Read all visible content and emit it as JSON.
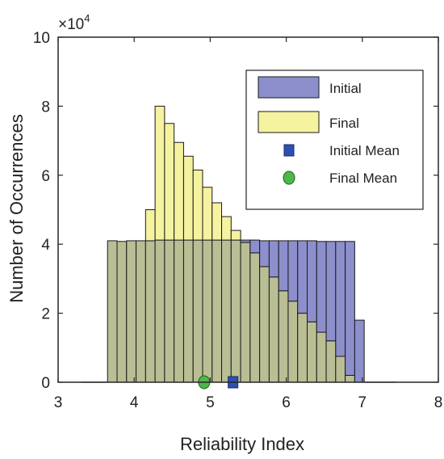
{
  "chart_data": {
    "type": "bar",
    "xlabel": "Reliability Index",
    "ylabel": "Number of Occurrences",
    "y_multiplier_base": "×10",
    "y_multiplier_exponent": "4",
    "xlim": [
      3,
      8
    ],
    "ylim": [
      0,
      10
    ],
    "xticks": [
      "3",
      "4",
      "5",
      "6",
      "7",
      "8"
    ],
    "yticks": [
      "0",
      "2",
      "4",
      "6",
      "8",
      "10"
    ],
    "bin_width": 0.125,
    "bin_left_edges": [
      3.65,
      3.775,
      3.9,
      4.025,
      4.15,
      4.275,
      4.4,
      4.525,
      4.65,
      4.775,
      4.9,
      5.025,
      5.15,
      5.275,
      5.4,
      5.525,
      5.65,
      5.775,
      5.9,
      6.025,
      6.15,
      6.275,
      6.4,
      6.525,
      6.65,
      6.775,
      6.9
    ],
    "series": [
      {
        "name": "Initial",
        "color": "#8c8fcc",
        "values": [
          4.1,
          4.08,
          4.1,
          4.1,
          4.1,
          4.12,
          4.12,
          4.12,
          4.12,
          4.12,
          4.12,
          4.12,
          4.12,
          4.12,
          4.12,
          4.12,
          4.1,
          4.1,
          4.1,
          4.1,
          4.1,
          4.1,
          4.08,
          4.08,
          4.08,
          4.08,
          1.8
        ]
      },
      {
        "name": "Final",
        "color": "#f5f2a0",
        "values": [
          4.1,
          4.08,
          4.1,
          4.1,
          5.0,
          8.0,
          7.5,
          6.95,
          6.55,
          6.15,
          5.65,
          5.2,
          4.8,
          4.4,
          4.05,
          3.75,
          3.35,
          3.05,
          2.65,
          2.35,
          2.0,
          1.75,
          1.45,
          1.2,
          0.75,
          0.2,
          0.0
        ]
      }
    ],
    "overlap_color": "#b9be94",
    "means": [
      {
        "name": "Initial Mean",
        "x": 5.3,
        "y": 0,
        "color": "#2f4fb0",
        "marker": "square"
      },
      {
        "name": "Final Mean",
        "x": 4.92,
        "y": 0,
        "color": "#4db84a",
        "marker": "circle"
      }
    ],
    "legend": {
      "placement": "top-right",
      "entries": [
        {
          "label": "Initial",
          "kind": "patch",
          "color": "#8c8fcc"
        },
        {
          "label": "Final",
          "kind": "patch",
          "color": "#f5f2a0"
        },
        {
          "label": "Initial Mean",
          "kind": "square",
          "color": "#2f4fb0"
        },
        {
          "label": "Final Mean",
          "kind": "circle",
          "color": "#4db84a"
        }
      ]
    },
    "grid": false
  }
}
